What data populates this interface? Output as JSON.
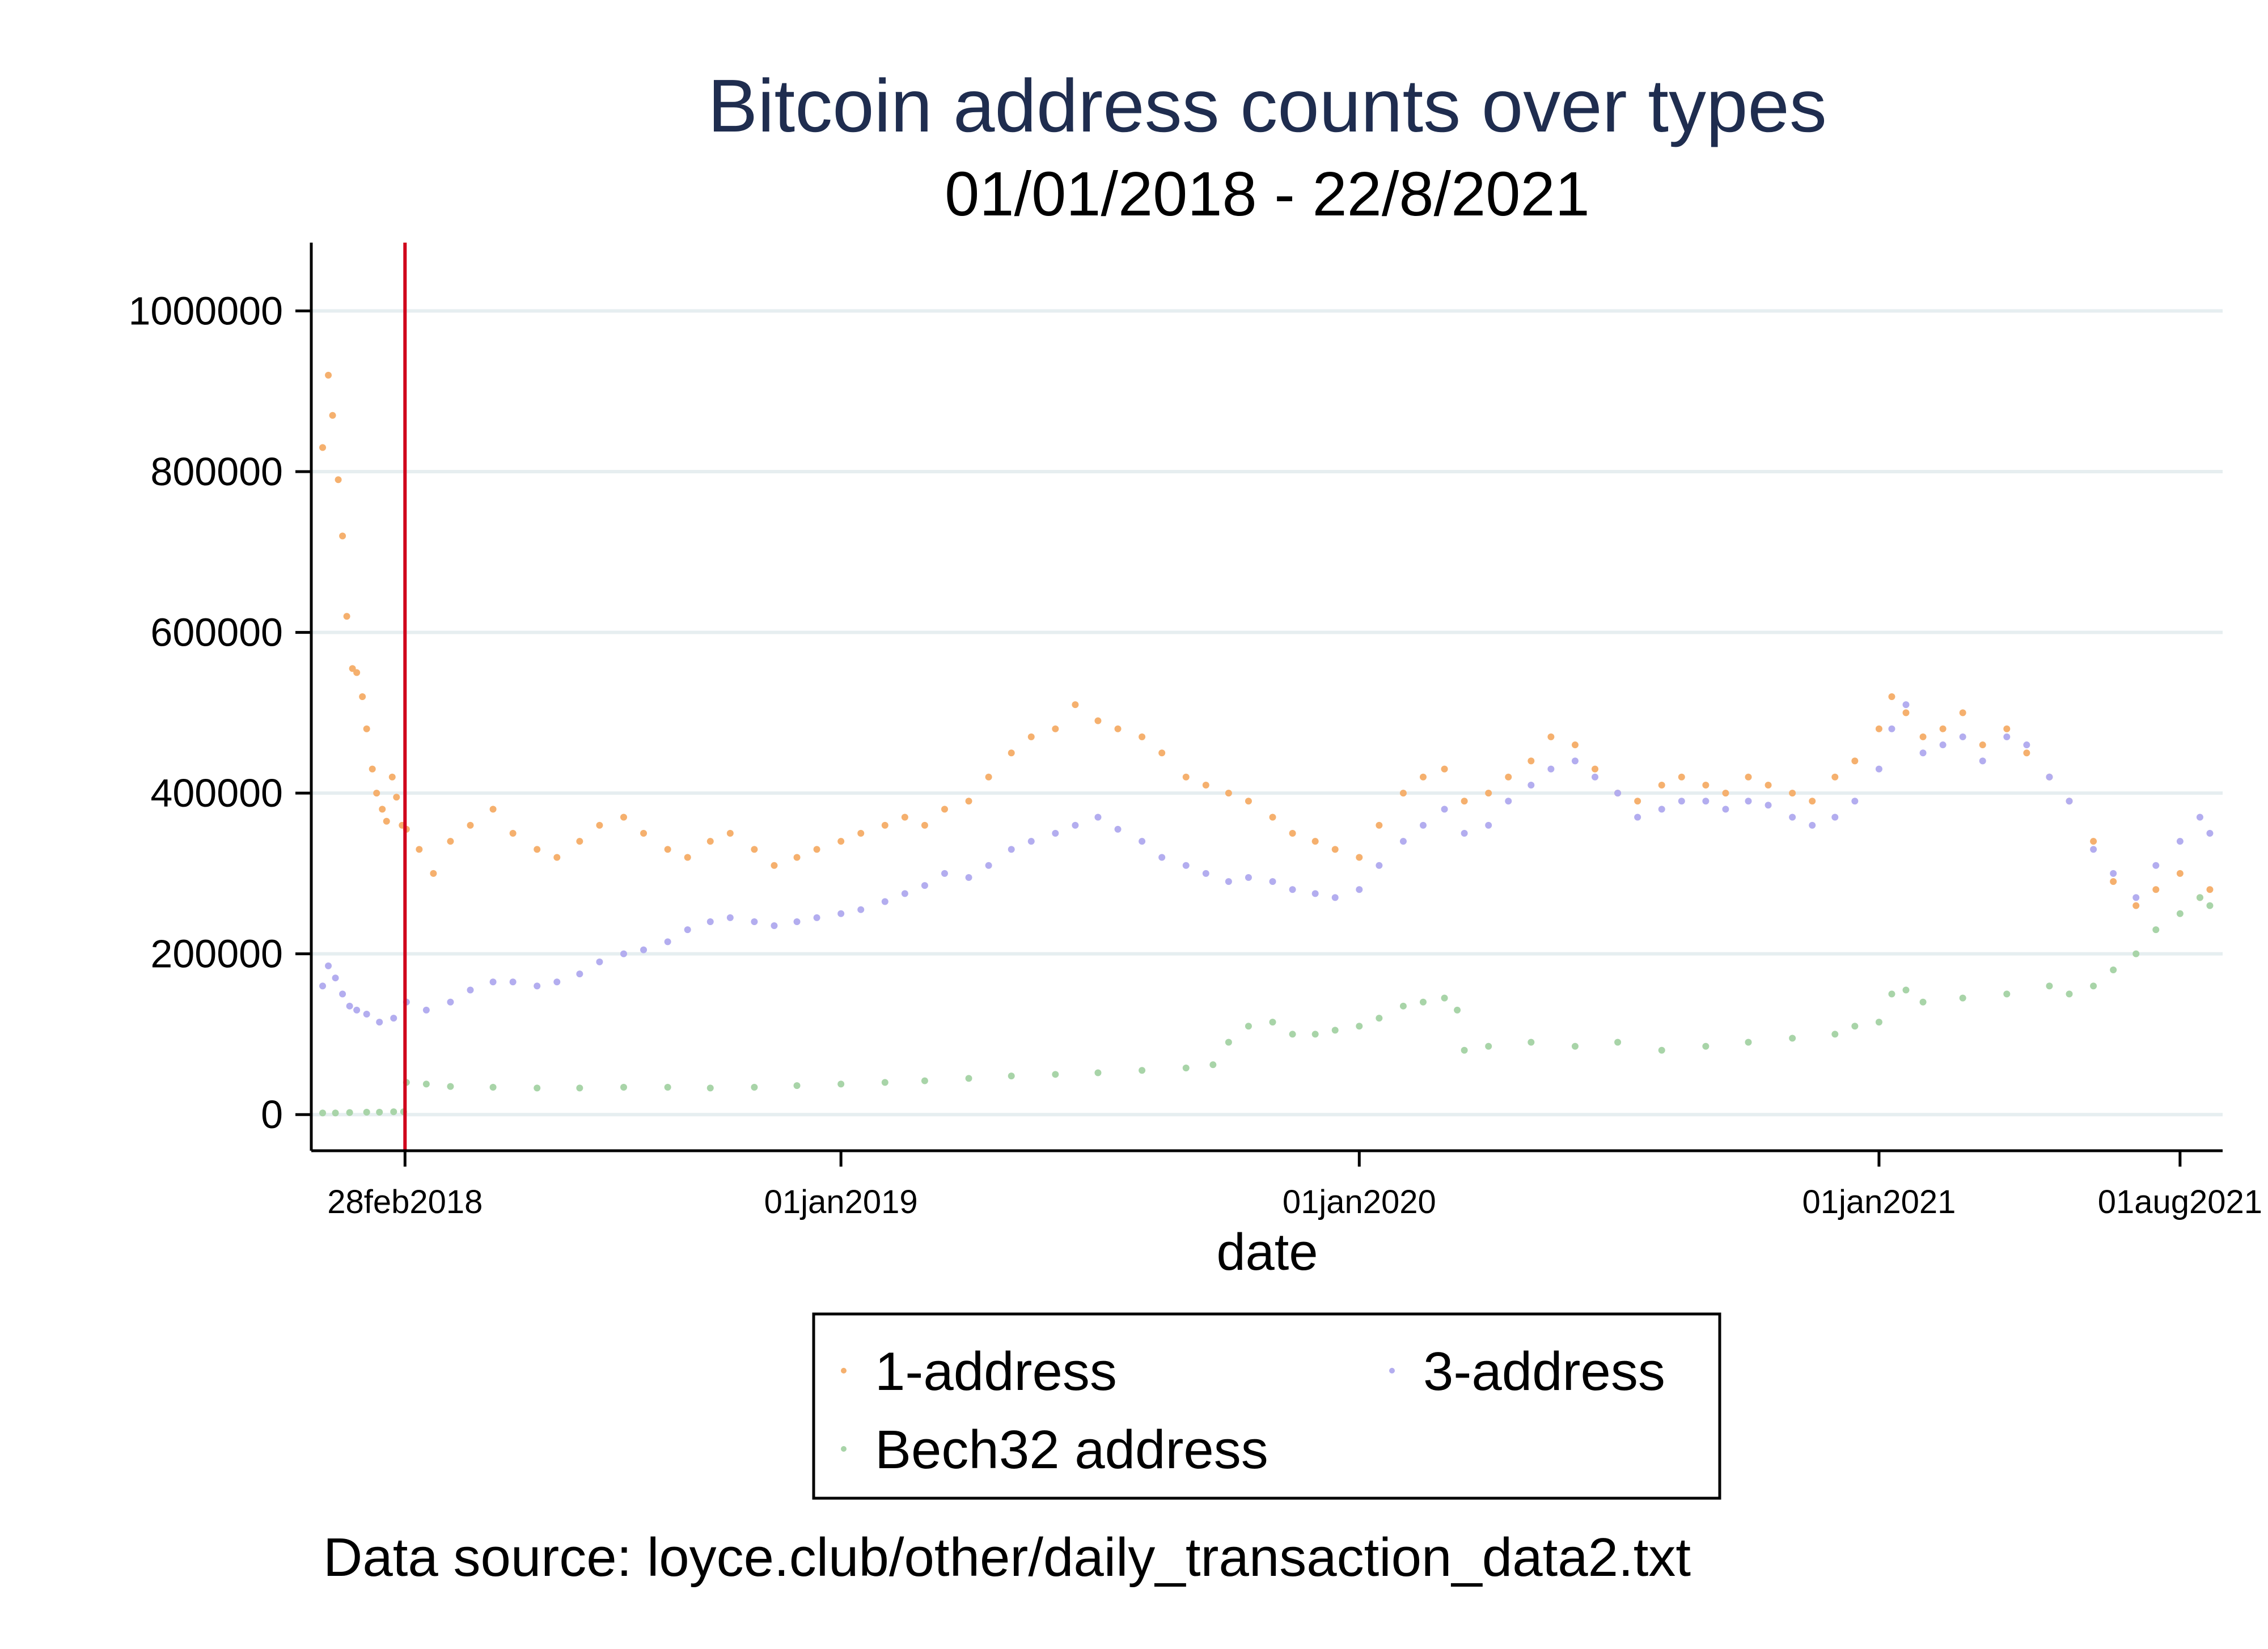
{
  "chart_data": {
    "type": "scatter",
    "title": "Bitcoin address counts over types",
    "subtitle": "01/01/2018 - 22/8/2021",
    "xlabel": "date",
    "ylabel": "",
    "x_type": "date",
    "xlim": [
      "2017-12-24",
      "2021-08-31"
    ],
    "ylim": [
      -45000,
      1085000
    ],
    "yticks": [
      0,
      200000,
      400000,
      600000,
      800000,
      1000000
    ],
    "ytick_labels": [
      "0",
      "200000",
      "400000",
      "600000",
      "800000",
      "1000000"
    ],
    "xticks": [
      "2018-02-28",
      "2019-01-01",
      "2020-01-01",
      "2021-01-01",
      "2021-08-01"
    ],
    "xtick_labels": [
      "28feb2018",
      "01jan2019",
      "01jan2020",
      "01jan2021",
      "01aug2021"
    ],
    "grid": true,
    "reference_line": {
      "x": "2018-02-28",
      "color": "#d0021b"
    },
    "note": "Data source: loyce.club/other/daily_transaction_data2.txt",
    "legend": {
      "position": "bottom",
      "entries": [
        "1-address",
        "3-address",
        "Bech32 address"
      ]
    },
    "series": [
      {
        "name": "1-address",
        "color": "#f5b06e",
        "points": [
          [
            "2018-01-01",
            830000
          ],
          [
            "2018-01-05",
            920000
          ],
          [
            "2018-01-08",
            870000
          ],
          [
            "2018-01-12",
            790000
          ],
          [
            "2018-01-15",
            720000
          ],
          [
            "2018-01-18",
            620000
          ],
          [
            "2018-01-22",
            555000
          ],
          [
            "2018-01-25",
            550000
          ],
          [
            "2018-01-29",
            520000
          ],
          [
            "2018-02-01",
            480000
          ],
          [
            "2018-02-05",
            430000
          ],
          [
            "2018-02-08",
            400000
          ],
          [
            "2018-02-12",
            380000
          ],
          [
            "2018-02-15",
            365000
          ],
          [
            "2018-02-19",
            420000
          ],
          [
            "2018-02-22",
            395000
          ],
          [
            "2018-02-26",
            360000
          ],
          [
            "2018-03-01",
            355000
          ],
          [
            "2018-03-10",
            330000
          ],
          [
            "2018-03-20",
            300000
          ],
          [
            "2018-04-01",
            340000
          ],
          [
            "2018-04-15",
            360000
          ],
          [
            "2018-05-01",
            380000
          ],
          [
            "2018-05-15",
            350000
          ],
          [
            "2018-06-01",
            330000
          ],
          [
            "2018-06-15",
            320000
          ],
          [
            "2018-07-01",
            340000
          ],
          [
            "2018-07-15",
            360000
          ],
          [
            "2018-08-01",
            370000
          ],
          [
            "2018-08-15",
            350000
          ],
          [
            "2018-09-01",
            330000
          ],
          [
            "2018-09-15",
            320000
          ],
          [
            "2018-10-01",
            340000
          ],
          [
            "2018-10-15",
            350000
          ],
          [
            "2018-11-01",
            330000
          ],
          [
            "2018-11-15",
            310000
          ],
          [
            "2018-12-01",
            320000
          ],
          [
            "2018-12-15",
            330000
          ],
          [
            "2019-01-01",
            340000
          ],
          [
            "2019-01-15",
            350000
          ],
          [
            "2019-02-01",
            360000
          ],
          [
            "2019-02-15",
            370000
          ],
          [
            "2019-03-01",
            360000
          ],
          [
            "2019-03-15",
            380000
          ],
          [
            "2019-04-01",
            390000
          ],
          [
            "2019-04-15",
            420000
          ],
          [
            "2019-05-01",
            450000
          ],
          [
            "2019-05-15",
            470000
          ],
          [
            "2019-06-01",
            480000
          ],
          [
            "2019-06-15",
            510000
          ],
          [
            "2019-07-01",
            490000
          ],
          [
            "2019-07-15",
            480000
          ],
          [
            "2019-08-01",
            470000
          ],
          [
            "2019-08-15",
            450000
          ],
          [
            "2019-09-01",
            420000
          ],
          [
            "2019-09-15",
            410000
          ],
          [
            "2019-10-01",
            400000
          ],
          [
            "2019-10-15",
            390000
          ],
          [
            "2019-11-01",
            370000
          ],
          [
            "2019-11-15",
            350000
          ],
          [
            "2019-12-01",
            340000
          ],
          [
            "2019-12-15",
            330000
          ],
          [
            "2020-01-01",
            320000
          ],
          [
            "2020-01-15",
            360000
          ],
          [
            "2020-02-01",
            400000
          ],
          [
            "2020-02-15",
            420000
          ],
          [
            "2020-03-01",
            430000
          ],
          [
            "2020-03-15",
            390000
          ],
          [
            "2020-04-01",
            400000
          ],
          [
            "2020-04-15",
            420000
          ],
          [
            "2020-05-01",
            440000
          ],
          [
            "2020-05-15",
            470000
          ],
          [
            "2020-06-01",
            460000
          ],
          [
            "2020-06-15",
            430000
          ],
          [
            "2020-07-01",
            400000
          ],
          [
            "2020-07-15",
            390000
          ],
          [
            "2020-08-01",
            410000
          ],
          [
            "2020-08-15",
            420000
          ],
          [
            "2020-09-01",
            410000
          ],
          [
            "2020-09-15",
            400000
          ],
          [
            "2020-10-01",
            420000
          ],
          [
            "2020-10-15",
            410000
          ],
          [
            "2020-11-01",
            400000
          ],
          [
            "2020-11-15",
            390000
          ],
          [
            "2020-12-01",
            420000
          ],
          [
            "2020-12-15",
            440000
          ],
          [
            "2021-01-01",
            480000
          ],
          [
            "2021-01-10",
            520000
          ],
          [
            "2021-01-20",
            500000
          ],
          [
            "2021-02-01",
            470000
          ],
          [
            "2021-02-15",
            480000
          ],
          [
            "2021-03-01",
            500000
          ],
          [
            "2021-03-15",
            460000
          ],
          [
            "2021-04-01",
            480000
          ],
          [
            "2021-04-15",
            450000
          ],
          [
            "2021-05-01",
            420000
          ],
          [
            "2021-05-15",
            390000
          ],
          [
            "2021-06-01",
            340000
          ],
          [
            "2021-06-15",
            290000
          ],
          [
            "2021-07-01",
            260000
          ],
          [
            "2021-07-15",
            280000
          ],
          [
            "2021-08-01",
            300000
          ],
          [
            "2021-08-15",
            270000
          ],
          [
            "2021-08-22",
            280000
          ]
        ]
      },
      {
        "name": "3-address",
        "color": "#b3adef",
        "points": [
          [
            "2018-01-01",
            160000
          ],
          [
            "2018-01-05",
            185000
          ],
          [
            "2018-01-10",
            170000
          ],
          [
            "2018-01-15",
            150000
          ],
          [
            "2018-01-20",
            135000
          ],
          [
            "2018-01-25",
            130000
          ],
          [
            "2018-02-01",
            125000
          ],
          [
            "2018-02-10",
            115000
          ],
          [
            "2018-02-20",
            120000
          ],
          [
            "2018-03-01",
            140000
          ],
          [
            "2018-03-15",
            130000
          ],
          [
            "2018-04-01",
            140000
          ],
          [
            "2018-04-15",
            155000
          ],
          [
            "2018-05-01",
            165000
          ],
          [
            "2018-05-15",
            165000
          ],
          [
            "2018-06-01",
            160000
          ],
          [
            "2018-06-15",
            165000
          ],
          [
            "2018-07-01",
            175000
          ],
          [
            "2018-07-15",
            190000
          ],
          [
            "2018-08-01",
            200000
          ],
          [
            "2018-08-15",
            205000
          ],
          [
            "2018-09-01",
            215000
          ],
          [
            "2018-09-15",
            230000
          ],
          [
            "2018-10-01",
            240000
          ],
          [
            "2018-10-15",
            245000
          ],
          [
            "2018-11-01",
            240000
          ],
          [
            "2018-11-15",
            235000
          ],
          [
            "2018-12-01",
            240000
          ],
          [
            "2018-12-15",
            245000
          ],
          [
            "2019-01-01",
            250000
          ],
          [
            "2019-01-15",
            255000
          ],
          [
            "2019-02-01",
            265000
          ],
          [
            "2019-02-15",
            275000
          ],
          [
            "2019-03-01",
            285000
          ],
          [
            "2019-03-15",
            300000
          ],
          [
            "2019-04-01",
            295000
          ],
          [
            "2019-04-15",
            310000
          ],
          [
            "2019-05-01",
            330000
          ],
          [
            "2019-05-15",
            340000
          ],
          [
            "2019-06-01",
            350000
          ],
          [
            "2019-06-15",
            360000
          ],
          [
            "2019-07-01",
            370000
          ],
          [
            "2019-07-15",
            355000
          ],
          [
            "2019-08-01",
            340000
          ],
          [
            "2019-08-15",
            320000
          ],
          [
            "2019-09-01",
            310000
          ],
          [
            "2019-09-15",
            300000
          ],
          [
            "2019-10-01",
            290000
          ],
          [
            "2019-10-15",
            295000
          ],
          [
            "2019-11-01",
            290000
          ],
          [
            "2019-11-15",
            280000
          ],
          [
            "2019-12-01",
            275000
          ],
          [
            "2019-12-15",
            270000
          ],
          [
            "2020-01-01",
            280000
          ],
          [
            "2020-01-15",
            310000
          ],
          [
            "2020-02-01",
            340000
          ],
          [
            "2020-02-15",
            360000
          ],
          [
            "2020-03-01",
            380000
          ],
          [
            "2020-03-15",
            350000
          ],
          [
            "2020-04-01",
            360000
          ],
          [
            "2020-04-15",
            390000
          ],
          [
            "2020-05-01",
            410000
          ],
          [
            "2020-05-15",
            430000
          ],
          [
            "2020-06-01",
            440000
          ],
          [
            "2020-06-15",
            420000
          ],
          [
            "2020-07-01",
            400000
          ],
          [
            "2020-07-15",
            370000
          ],
          [
            "2020-08-01",
            380000
          ],
          [
            "2020-08-15",
            390000
          ],
          [
            "2020-09-01",
            390000
          ],
          [
            "2020-09-15",
            380000
          ],
          [
            "2020-10-01",
            390000
          ],
          [
            "2020-10-15",
            385000
          ],
          [
            "2020-11-01",
            370000
          ],
          [
            "2020-11-15",
            360000
          ],
          [
            "2020-12-01",
            370000
          ],
          [
            "2020-12-15",
            390000
          ],
          [
            "2021-01-01",
            430000
          ],
          [
            "2021-01-10",
            480000
          ],
          [
            "2021-01-20",
            510000
          ],
          [
            "2021-02-01",
            450000
          ],
          [
            "2021-02-15",
            460000
          ],
          [
            "2021-03-01",
            470000
          ],
          [
            "2021-03-15",
            440000
          ],
          [
            "2021-04-01",
            470000
          ],
          [
            "2021-04-15",
            460000
          ],
          [
            "2021-05-01",
            420000
          ],
          [
            "2021-05-15",
            390000
          ],
          [
            "2021-06-01",
            330000
          ],
          [
            "2021-06-15",
            300000
          ],
          [
            "2021-07-01",
            270000
          ],
          [
            "2021-07-15",
            310000
          ],
          [
            "2021-08-01",
            340000
          ],
          [
            "2021-08-15",
            370000
          ],
          [
            "2021-08-22",
            350000
          ]
        ]
      },
      {
        "name": "Bech32 address",
        "color": "#a8d4a8",
        "points": [
          [
            "2018-01-01",
            2000
          ],
          [
            "2018-01-10",
            2000
          ],
          [
            "2018-01-20",
            2500
          ],
          [
            "2018-02-01",
            3000
          ],
          [
            "2018-02-10",
            3000
          ],
          [
            "2018-02-20",
            3500
          ],
          [
            "2018-02-27",
            3500
          ],
          [
            "2018-03-01",
            40000
          ],
          [
            "2018-03-15",
            38000
          ],
          [
            "2018-04-01",
            35000
          ],
          [
            "2018-05-01",
            34000
          ],
          [
            "2018-06-01",
            33000
          ],
          [
            "2018-07-01",
            33000
          ],
          [
            "2018-08-01",
            34000
          ],
          [
            "2018-09-01",
            34000
          ],
          [
            "2018-10-01",
            33000
          ],
          [
            "2018-11-01",
            34000
          ],
          [
            "2018-12-01",
            36000
          ],
          [
            "2019-01-01",
            38000
          ],
          [
            "2019-02-01",
            40000
          ],
          [
            "2019-03-01",
            42000
          ],
          [
            "2019-04-01",
            45000
          ],
          [
            "2019-05-01",
            48000
          ],
          [
            "2019-06-01",
            50000
          ],
          [
            "2019-07-01",
            52000
          ],
          [
            "2019-08-01",
            55000
          ],
          [
            "2019-09-01",
            58000
          ],
          [
            "2019-09-20",
            62000
          ],
          [
            "2019-10-01",
            90000
          ],
          [
            "2019-10-15",
            110000
          ],
          [
            "2019-11-01",
            115000
          ],
          [
            "2019-11-15",
            100000
          ],
          [
            "2019-12-01",
            100000
          ],
          [
            "2019-12-15",
            105000
          ],
          [
            "2020-01-01",
            110000
          ],
          [
            "2020-01-15",
            120000
          ],
          [
            "2020-02-01",
            135000
          ],
          [
            "2020-02-15",
            140000
          ],
          [
            "2020-03-01",
            145000
          ],
          [
            "2020-03-10",
            130000
          ],
          [
            "2020-03-15",
            80000
          ],
          [
            "2020-04-01",
            85000
          ],
          [
            "2020-05-01",
            90000
          ],
          [
            "2020-06-01",
            85000
          ],
          [
            "2020-07-01",
            90000
          ],
          [
            "2020-08-01",
            80000
          ],
          [
            "2020-09-01",
            85000
          ],
          [
            "2020-10-01",
            90000
          ],
          [
            "2020-11-01",
            95000
          ],
          [
            "2020-12-01",
            100000
          ],
          [
            "2020-12-15",
            110000
          ],
          [
            "2021-01-01",
            115000
          ],
          [
            "2021-01-10",
            150000
          ],
          [
            "2021-01-20",
            155000
          ],
          [
            "2021-02-01",
            140000
          ],
          [
            "2021-03-01",
            145000
          ],
          [
            "2021-04-01",
            150000
          ],
          [
            "2021-05-01",
            160000
          ],
          [
            "2021-05-15",
            150000
          ],
          [
            "2021-06-01",
            160000
          ],
          [
            "2021-06-15",
            180000
          ],
          [
            "2021-07-01",
            200000
          ],
          [
            "2021-07-15",
            230000
          ],
          [
            "2021-08-01",
            250000
          ],
          [
            "2021-08-15",
            270000
          ],
          [
            "2021-08-22",
            260000
          ]
        ]
      }
    ]
  }
}
